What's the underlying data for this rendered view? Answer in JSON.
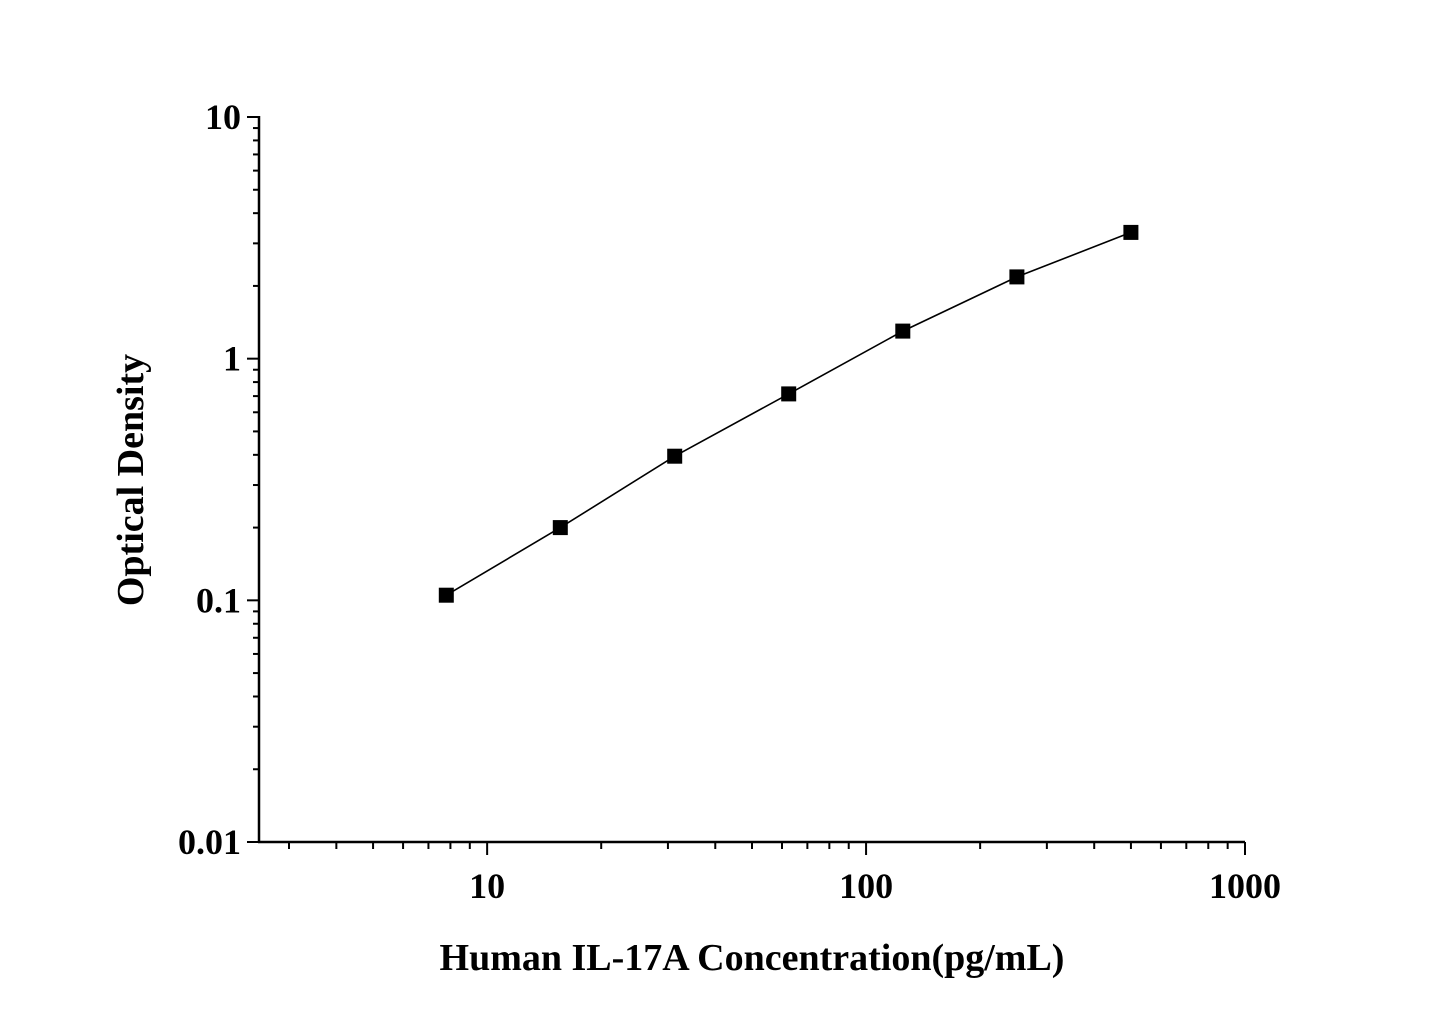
{
  "chart_data": {
    "type": "scatter",
    "title": "",
    "xlabel": "Human IL-17A Concentration(pg/mL)",
    "ylabel": "Optical Density",
    "xscale": "log",
    "yscale": "log",
    "xlim": [
      2.5,
      1000
    ],
    "ylim": [
      0.01,
      10
    ],
    "xticks": [
      10,
      100,
      1000
    ],
    "xtick_labels": [
      "10",
      "100",
      "1000"
    ],
    "yticks": [
      0.01,
      0.1,
      1,
      10
    ],
    "ytick_labels": [
      "0.01",
      "0.1",
      "1",
      "10"
    ],
    "grid": false,
    "legend": "none",
    "marker": "square",
    "connected": true,
    "color": "#000000",
    "series": [
      {
        "x": [
          7.8,
          15.6,
          31.25,
          62.5,
          125,
          250,
          500
        ],
        "y": [
          0.105,
          0.2,
          0.395,
          0.715,
          1.3,
          2.18,
          3.33
        ]
      }
    ]
  }
}
